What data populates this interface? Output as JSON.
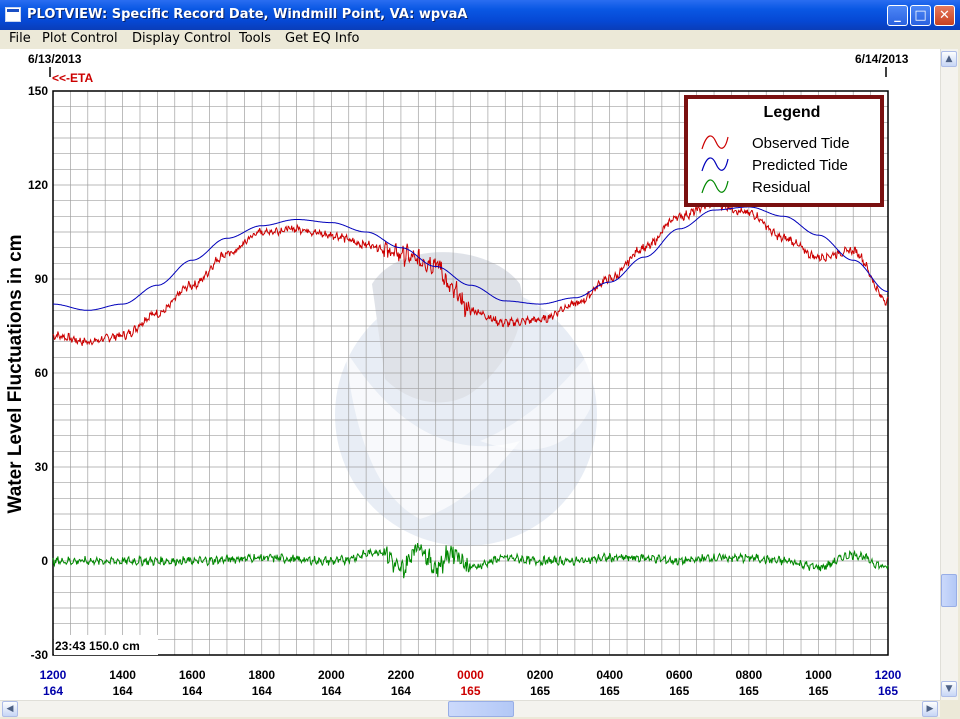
{
  "window": {
    "title": "PLOTVIEW: Specific Record Date, Windmill Point, VA: wpvaA"
  },
  "menu": [
    "File",
    "Plot Control",
    "Display Control",
    "Tools",
    "Get EQ Info"
  ],
  "plot": {
    "date_left": "6/13/2013",
    "date_right": "6/14/2013",
    "eta_label": "<<-ETA",
    "readout": "23:43 150.0 cm",
    "yaxis_label": "Water Level Fluctuations in cm",
    "legend": {
      "title": "Legend",
      "items": [
        "Observed Tide",
        "Predicted Tide",
        "Residual"
      ]
    },
    "colors": {
      "observed": "#cc0000",
      "predicted": "#0000bb",
      "residual": "#008800",
      "hour_blue": "#0000aa",
      "hour_red": "#cc0000",
      "legend_border": "#7a1010"
    }
  },
  "chart_data": {
    "type": "line",
    "title": "",
    "ylabel": "Water Level Fluctuations in cm",
    "ylim": [
      -30,
      150
    ],
    "yticks": [
      -30,
      0,
      30,
      60,
      90,
      120,
      150
    ],
    "xlim_hours": [
      12,
      36
    ],
    "x_ticks": [
      {
        "hour": "1200",
        "day": "164",
        "color": "blue"
      },
      {
        "hour": "1400",
        "day": "164",
        "color": "black"
      },
      {
        "hour": "1600",
        "day": "164",
        "color": "black"
      },
      {
        "hour": "1800",
        "day": "164",
        "color": "black"
      },
      {
        "hour": "2000",
        "day": "164",
        "color": "black"
      },
      {
        "hour": "2200",
        "day": "164",
        "color": "black"
      },
      {
        "hour": "0000",
        "day": "165",
        "color": "red"
      },
      {
        "hour": "0200",
        "day": "165",
        "color": "black"
      },
      {
        "hour": "0400",
        "day": "165",
        "color": "black"
      },
      {
        "hour": "0600",
        "day": "165",
        "color": "black"
      },
      {
        "hour": "0800",
        "day": "165",
        "color": "black"
      },
      {
        "hour": "1000",
        "day": "165",
        "color": "black"
      },
      {
        "hour": "1200",
        "day": "165",
        "color": "blue"
      }
    ],
    "legend_position": "top-right",
    "grid": true,
    "series": [
      {
        "name": "Observed Tide",
        "color": "#cc0000",
        "x": [
          12,
          13,
          14,
          15,
          16,
          17,
          18,
          19,
          20,
          21,
          22,
          22.5,
          23,
          23.5,
          24,
          25,
          26,
          27,
          28,
          29,
          30,
          31,
          32,
          33,
          34,
          35,
          36
        ],
        "y": [
          72,
          70,
          72,
          79,
          88,
          98,
          105,
          106,
          104,
          101,
          98,
          96,
          95,
          86,
          80,
          76,
          77,
          82,
          90,
          100,
          110,
          114,
          111,
          103,
          97,
          99,
          83
        ]
      },
      {
        "name": "Predicted Tide",
        "color": "#0000bb",
        "x": [
          12,
          13,
          14,
          15,
          16,
          17,
          18,
          19,
          20,
          21,
          22,
          23,
          24,
          25,
          26,
          27,
          28,
          29,
          30,
          31,
          32,
          33,
          34,
          35,
          36
        ],
        "y": [
          82,
          80,
          82,
          88,
          96,
          103,
          107,
          109,
          108,
          105,
          100,
          94,
          88,
          83,
          82,
          84,
          89,
          97,
          106,
          112,
          113,
          110,
          104,
          96,
          86
        ]
      },
      {
        "name": "Residual",
        "color": "#008800",
        "x": [
          12,
          14,
          16,
          18,
          20,
          21.5,
          22,
          22.5,
          23,
          23.5,
          24,
          25,
          26,
          27,
          28,
          29,
          30,
          31,
          32,
          33,
          34,
          35,
          36
        ],
        "y": [
          0,
          0,
          0,
          1,
          0,
          3,
          -3,
          5,
          -2,
          3,
          -2,
          1,
          0,
          0,
          1,
          1,
          0,
          1,
          1,
          0,
          -2,
          2,
          -2
        ]
      }
    ]
  }
}
